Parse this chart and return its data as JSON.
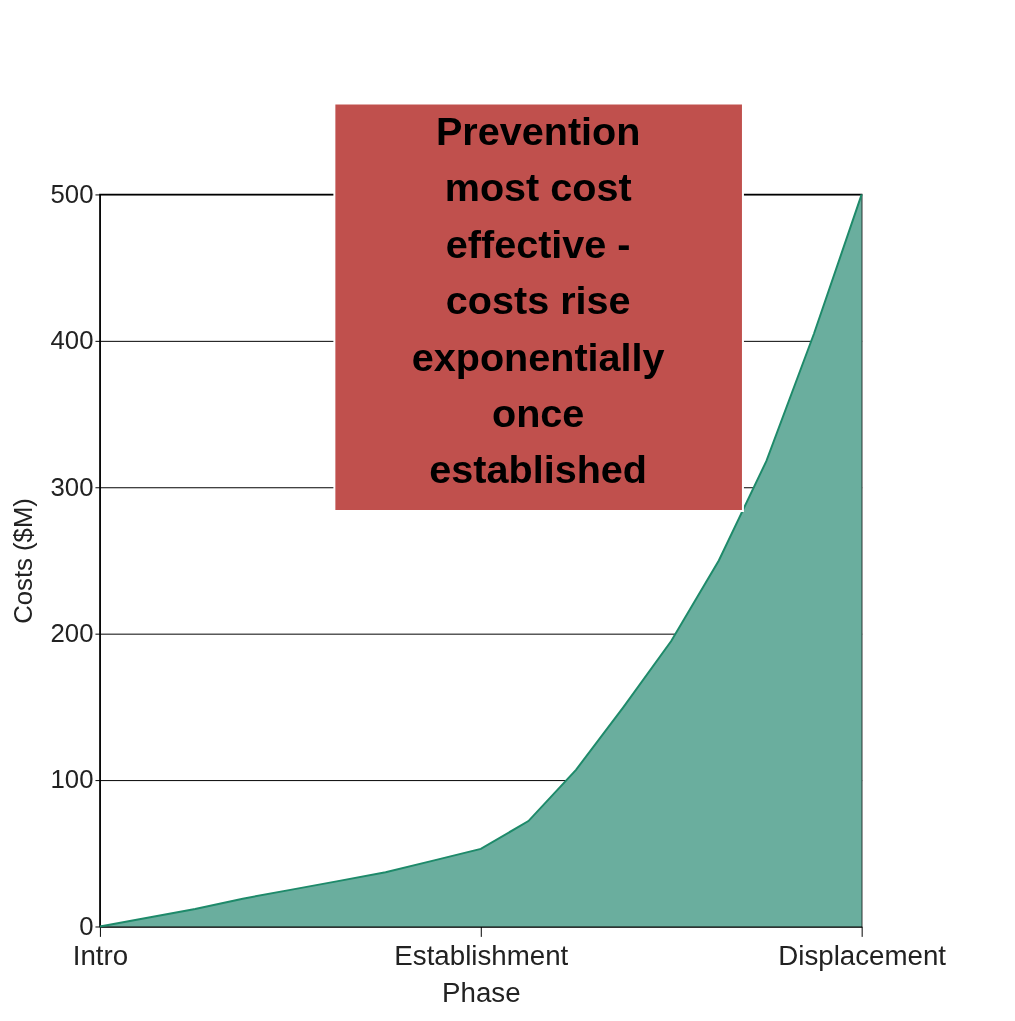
{
  "chart_data": {
    "type": "area",
    "xlabel": "Phase",
    "ylabel": "Costs ($M)",
    "categories": [
      "Intro",
      null,
      null,
      null,
      null,
      null,
      null,
      null,
      "Establishment",
      null,
      null,
      null,
      null,
      null,
      null,
      null,
      "Displacement"
    ],
    "series": [
      {
        "color": "#6aae9e",
        "values": [
          0,
          6,
          12,
          19,
          25,
          31,
          37,
          45,
          53,
          72,
          107,
          150,
          195,
          250,
          318,
          405,
          500
        ]
      }
    ],
    "ylim": [
      0,
      500
    ],
    "yticks": [
      0,
      100,
      200,
      300,
      400,
      500
    ],
    "grid": "y",
    "annotations": [
      "Prevention most cost effective - costs rise exponentially once established"
    ]
  }
}
